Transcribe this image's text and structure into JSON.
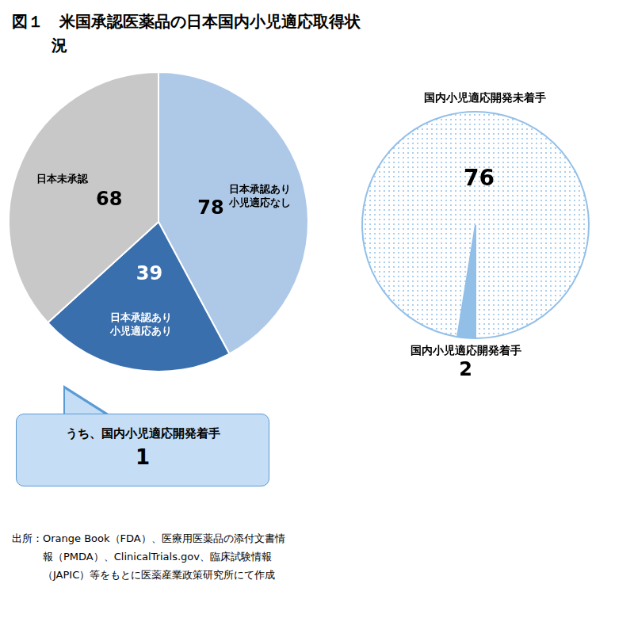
{
  "chart_data": [
    {
      "type": "pie",
      "title": [
        "図１　米国承認医薬品の日本国内小児適応取得状",
        "況"
      ],
      "categories": [
        "日本承認あり\n小児適応なし",
        "日本承認あり\n小児適応あり",
        "日本未承認"
      ],
      "values": [
        78,
        39,
        68
      ],
      "colors": [
        "#aec9e8",
        "#3a6fad",
        "#c8c8c8"
      ],
      "data_labels": true,
      "annotations": [
        {
          "text": [
            "うち、国内小児適応開発着手",
            "1"
          ]
        },
        {
          "text": [
            "出所：Orange Book（FDA）、医療用医薬品の添付文書情",
            "　　　報（PMDA）、ClinicalTrials.gov、臨床試験情報",
            "　　　（JAPIC）等をもとに医薬産業政策研究所にて作成"
          ]
        }
      ]
    },
    {
      "type": "pie",
      "categories": [
        "国内小児適応開発着手",
        "国内小児適応開発未着手"
      ],
      "values": [
        2,
        76
      ],
      "colors": [
        "#92bfe8",
        "#ffffff"
      ],
      "data_labels": true
    }
  ]
}
